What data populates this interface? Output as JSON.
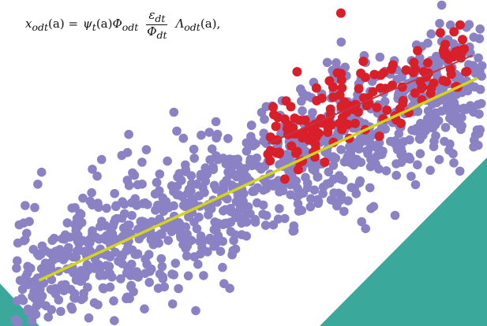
{
  "formula": {
    "lhs": "x_odt(a) =",
    "rhs_prefix": "ψ_t(a)Φ_odt",
    "frac_num": "ε_dt",
    "frac_den": "Φ_dt",
    "rhs_suffix": "Λ_odt(a),"
  },
  "colors": {
    "background": "#ffffff",
    "purple_points": "#8a82c4",
    "red_points": "#d81f2a",
    "yellow_line": "#d4d41a",
    "red_line": "#c8323c",
    "teal": "#3aa89b"
  },
  "chart_data": {
    "type": "scatter",
    "title": "",
    "xlabel": "",
    "ylabel": "",
    "grid": false,
    "legend": "none",
    "xlim": [
      0,
      100
    ],
    "ylim": [
      0,
      100
    ],
    "series": [
      {
        "color": "#8a82c4",
        "trend": {
          "x": [
            8,
            98
          ],
          "y": [
            14,
            76
          ]
        },
        "cloud": {
          "n": 1100,
          "x_range": [
            3,
            99
          ],
          "slope": 0.69,
          "intercept": 8.5,
          "spread": 10.5,
          "seed": 7
        }
      },
      {
        "color": "#d81f2a",
        "trend": {
          "x": [
            55,
            97
          ],
          "y": [
            56,
            83
          ]
        },
        "cloud": {
          "n": 160,
          "x_range": [
            55,
            96
          ],
          "slope": 0.64,
          "intercept": 20.5,
          "spread": 6.5,
          "seed": 19
        },
        "outliers": [
          {
            "x": 70,
            "y": 96
          },
          {
            "x": 61,
            "y": 78
          }
        ]
      }
    ]
  }
}
